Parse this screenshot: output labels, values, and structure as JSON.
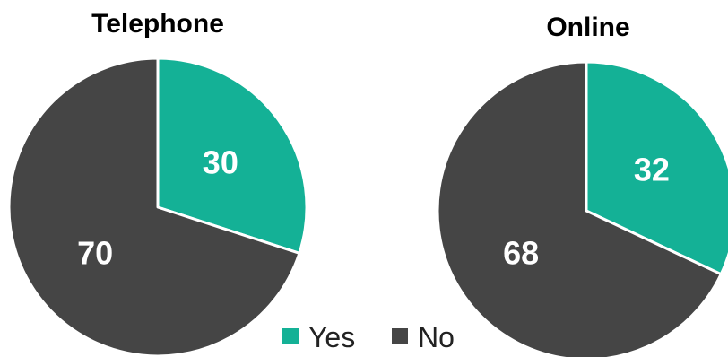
{
  "chart_data": [
    {
      "type": "pie",
      "title": "Telephone",
      "slices": [
        {
          "label": "Yes",
          "value": 30,
          "color": "#14b196"
        },
        {
          "label": "No",
          "value": 70,
          "color": "#454545"
        }
      ]
    },
    {
      "type": "pie",
      "title": "Online",
      "slices": [
        {
          "label": "Yes",
          "value": 32,
          "color": "#14b196"
        },
        {
          "label": "No",
          "value": 68,
          "color": "#454545"
        }
      ]
    }
  ],
  "legend": {
    "placement": "bottom-center",
    "items": [
      {
        "label": "Yes",
        "color": "#14b196"
      },
      {
        "label": "No",
        "color": "#454545"
      }
    ]
  }
}
